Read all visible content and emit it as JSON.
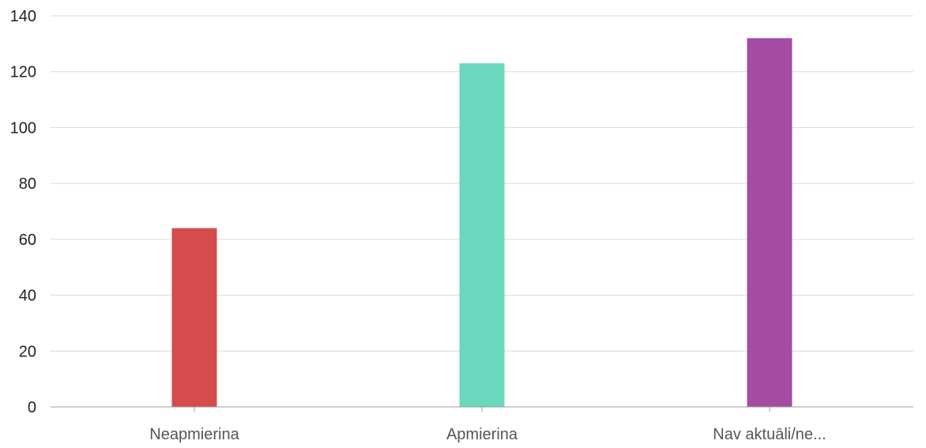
{
  "chart_data": {
    "type": "bar",
    "title": "",
    "xlabel": "",
    "ylabel": "",
    "categories": [
      "Neapmierina",
      "Apmierina",
      "Nav aktuāli/ne..."
    ],
    "values": [
      64,
      123,
      132
    ],
    "colors": [
      "#d64b4e",
      "#69d8bd",
      "#a44ca3"
    ],
    "ylim": [
      0,
      140
    ],
    "yticks": [
      0,
      20,
      40,
      60,
      80,
      100,
      120,
      140
    ],
    "grid": true,
    "legend": "none"
  }
}
